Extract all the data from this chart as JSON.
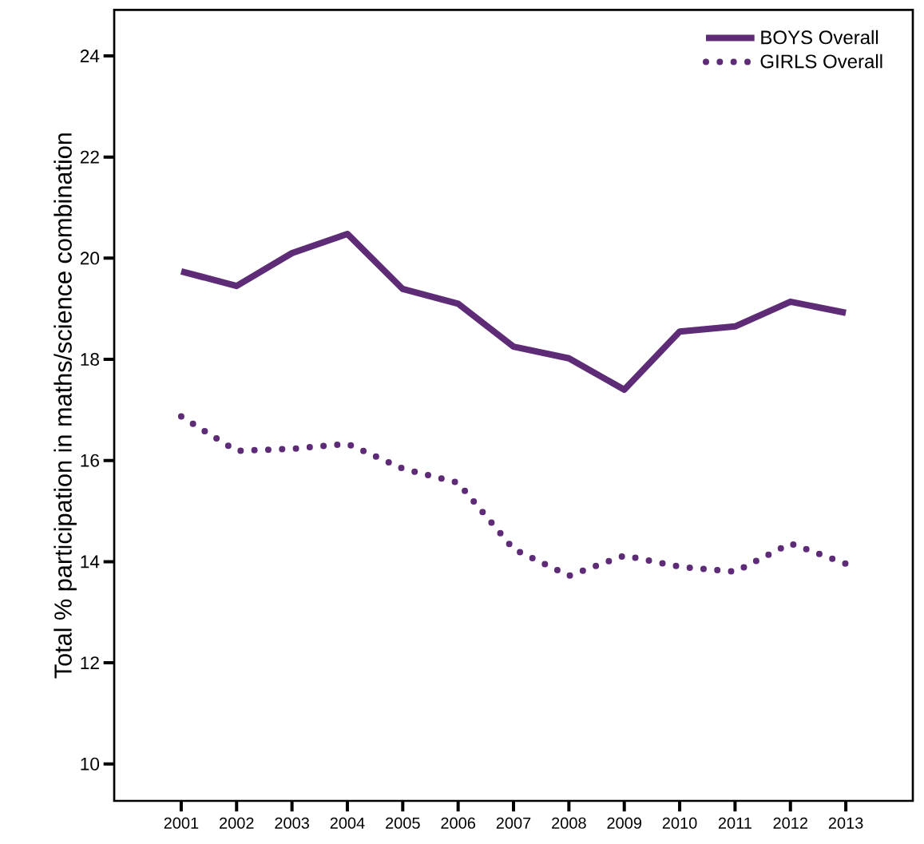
{
  "chart_data": {
    "type": "line",
    "ylabel": "Total % participation in maths/science combination",
    "categories": [
      "2001",
      "2002",
      "2003",
      "2004",
      "2005",
      "2006",
      "2007",
      "2008",
      "2009",
      "2010",
      "2011",
      "2012",
      "2013"
    ],
    "series": [
      {
        "name": "BOYS Overall",
        "color": "#5e2c77",
        "line_style": "solid",
        "values": [
          19.74,
          19.45,
          20.1,
          20.48,
          19.39,
          19.1,
          18.25,
          18.02,
          17.4,
          18.55,
          18.65,
          19.14,
          18.92
        ]
      },
      {
        "name": "GIRLS Overall",
        "color": "#5e2c77",
        "line_style": "dotted",
        "values": [
          16.87,
          16.19,
          16.23,
          16.33,
          15.84,
          15.56,
          14.25,
          13.72,
          14.12,
          13.9,
          13.8,
          14.36,
          13.96
        ]
      }
    ],
    "ylim": [
      9.27,
      24.91
    ],
    "yticks": [
      10,
      12,
      14,
      16,
      18,
      20,
      22,
      24
    ],
    "grid": false,
    "legend": "top right",
    "marker": "none"
  }
}
